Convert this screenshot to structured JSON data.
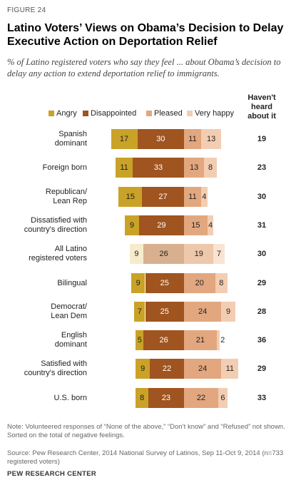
{
  "figure_label": "FIGURE 24",
  "title_line1": "Latino Voters’ Views on Obama’s Decision to Delay",
  "title_line2": "Executive Action on Deportation Relief",
  "subtitle": "% of Latino registered voters who say they feel ... about Obama’s decision to delay any action to extend deportation relief to immigrants.",
  "column_header": [
    "Haven't",
    "heard",
    "about it"
  ],
  "note": "Note: Volunteered responses of “None of the above,” “Don’t know” and “Refused” not shown. Sorted on the total of negative feelings.",
  "source": "Source: Pew Research Center, 2014 National Survey of Latinos, Sep 11-Oct 9, 2014 (n=733 registered voters)",
  "org": "PEW RESEARCH CENTER",
  "colors": {
    "angry": "#c9a227",
    "disappointed": "#a0541f",
    "pleased": "#e2a77f",
    "very_happy": "#f3cdb2"
  },
  "chart_data": {
    "type": "bar",
    "orientation": "horizontal-stacked-diverging",
    "series": [
      {
        "name": "Angry",
        "color": "#c9a227",
        "values": [
          17,
          11,
          15,
          9,
          9,
          9,
          7,
          5,
          9,
          8
        ]
      },
      {
        "name": "Disappointed",
        "color": "#a0541f",
        "values": [
          30,
          33,
          27,
          29,
          26,
          25,
          25,
          26,
          22,
          23
        ]
      },
      {
        "name": "Pleased",
        "color": "#e2a77f",
        "values": [
          11,
          13,
          11,
          15,
          19,
          20,
          24,
          21,
          24,
          22
        ]
      },
      {
        "name": "Very happy",
        "color": "#f3cdb2",
        "values": [
          13,
          8,
          4,
          4,
          7,
          8,
          9,
          2,
          11,
          6
        ]
      }
    ],
    "categories": [
      [
        "Spanish",
        "dominant"
      ],
      [
        "Foreign born"
      ],
      [
        "Republican/",
        "Lean Rep"
      ],
      [
        "Dissatisfied with",
        "country's direction"
      ],
      [
        "All Latino",
        "registered voters"
      ],
      [
        "Bilingual"
      ],
      [
        "Democrat/",
        "Lean Dem"
      ],
      [
        "English",
        "dominant"
      ],
      [
        "Satisfied with",
        "country's direction"
      ],
      [
        "U.S. born"
      ]
    ],
    "havent_heard": [
      19,
      23,
      30,
      31,
      30,
      29,
      28,
      36,
      29,
      33
    ],
    "highlight_row": 4
  }
}
